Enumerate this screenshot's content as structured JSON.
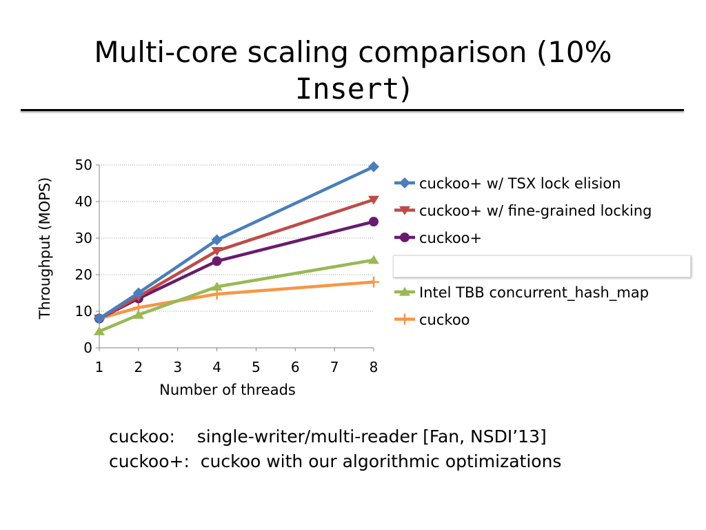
{
  "slide": {
    "title_text": "Multi-core scaling comparison (10%",
    "title_code": "Insert",
    "title_close": ")",
    "notes": [
      "cuckoo:    single-writer/multi-reader [Fan, NSDI’13]",
      "cuckoo+:  cuckoo with our algorithmic optimizations"
    ]
  },
  "chart_data": {
    "type": "line",
    "title": "",
    "xlabel": "Number of threads",
    "ylabel": "Throughput (MOPS)",
    "xlim": [
      1,
      8
    ],
    "ylim": [
      0,
      50
    ],
    "xticks": [
      1,
      2,
      3,
      4,
      5,
      6,
      7,
      8
    ],
    "yticks": [
      0,
      10,
      20,
      30,
      40,
      50
    ],
    "grid": "horizontal",
    "legend_position": "right",
    "series": [
      {
        "name": "cuckoo+ w/ TSX lock elision",
        "color": "#4a7ebb",
        "marker": "diamond",
        "x": [
          1,
          2,
          4,
          8
        ],
        "y": [
          8,
          15,
          29.5,
          49.5
        ]
      },
      {
        "name": "cuckoo+ w/ fine-grained locking",
        "color": "#be4b48",
        "marker": "triangle-down",
        "x": [
          1,
          2,
          4,
          8
        ],
        "y": [
          8,
          14,
          26.5,
          40.5
        ]
      },
      {
        "name": "cuckoo+",
        "color": "#6a1b6e",
        "marker": "circle",
        "x": [
          1,
          2,
          4,
          8
        ],
        "y": [
          8,
          13.5,
          23.7,
          34.5
        ]
      },
      {
        "name": "",
        "color": "#ffffff",
        "marker": "none",
        "x": [],
        "y": []
      },
      {
        "name": "Intel TBB concurrent_hash_map",
        "color": "#98b954",
        "marker": "triangle-up",
        "x": [
          1,
          2,
          4,
          8
        ],
        "y": [
          4.5,
          9,
          16.7,
          24
        ]
      },
      {
        "name": "cuckoo",
        "color": "#f79646",
        "marker": "plus",
        "x": [
          1,
          2,
          4,
          8
        ],
        "y": [
          8,
          11,
          14.7,
          18
        ]
      }
    ]
  }
}
